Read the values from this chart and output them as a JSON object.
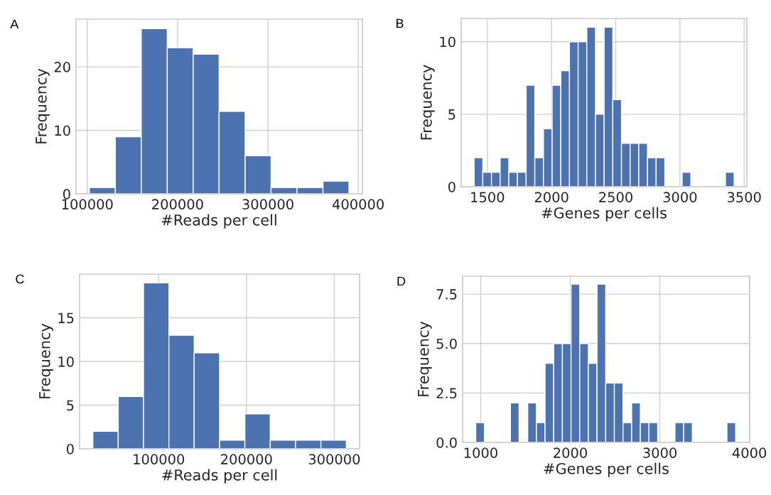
{
  "chart_data": [
    {
      "type": "histogram",
      "title": "A",
      "xlabel": "#Reads per cell",
      "ylabel": "Frequency",
      "color": "#4c72b0",
      "grid": true,
      "bins": [
        102400,
        131100,
        159800,
        188600,
        217300,
        246000,
        274800,
        303500,
        332200,
        361000,
        389700
      ],
      "values": [
        1,
        9,
        26,
        23,
        22,
        13,
        6,
        1,
        1,
        2
      ],
      "xlim": [
        87600,
        404600
      ],
      "xticks": [
        100000,
        200000,
        300000,
        400000
      ],
      "ylim": [
        0,
        27.5
      ],
      "yticks": [
        0,
        10,
        20
      ]
    },
    {
      "type": "histogram",
      "title": "B",
      "xlabel": "#Genes per cells",
      "ylabel": "Frequency",
      "color": "#4c72b0",
      "grid": true,
      "bins": [
        1397,
        1464.5,
        1532,
        1599.5,
        1667,
        1734.5,
        1802,
        1869.5,
        1937,
        2004.5,
        2072,
        2139.5,
        2207,
        2274.5,
        2342,
        2409.5,
        2477,
        2544.5,
        2612,
        2679.5,
        2747,
        2814.5,
        2882,
        2949.5,
        3017,
        3084.5,
        3152,
        3219.5,
        3287,
        3354.5,
        3422
      ],
      "values": [
        2,
        1,
        1,
        2,
        1,
        1,
        7,
        2,
        4,
        7,
        8,
        10,
        10,
        11,
        5,
        11,
        6,
        3,
        3,
        3,
        2,
        2,
        0,
        0,
        1,
        0,
        0,
        0,
        0,
        1
      ],
      "xlim": [
        1296,
        3521
      ],
      "xticks": [
        1500,
        2000,
        2500,
        3000,
        3500
      ],
      "ylim": [
        0,
        11.6
      ],
      "yticks": [
        0,
        5,
        10
      ]
    },
    {
      "type": "histogram",
      "title": "C",
      "xlabel": "#Reads per cell",
      "ylabel": "Frequency",
      "color": "#4c72b0",
      "grid": true,
      "bins": [
        25100,
        54000,
        82800,
        111700,
        140500,
        169400,
        198200,
        227100,
        255900,
        284800,
        313700
      ],
      "values": [
        2,
        6,
        19,
        13,
        11,
        1,
        4,
        1,
        1,
        1
      ],
      "xlim": [
        10000,
        328800
      ],
      "xticks": [
        100000,
        200000,
        300000
      ],
      "ylim": [
        0,
        20
      ],
      "yticks": [
        0,
        5,
        10,
        15
      ]
    },
    {
      "type": "histogram",
      "title": "D",
      "xlabel": "#Genes per cells",
      "ylabel": "Frequency",
      "color": "#4c72b0",
      "grid": true,
      "bins": [
        945,
        1041.7,
        1138.4,
        1235.1,
        1331.8,
        1428.5,
        1525.2,
        1621.9,
        1718.6,
        1815.3,
        1912,
        2008.7,
        2105.4,
        2202.1,
        2298.8,
        2395.5,
        2492.2,
        2588.9,
        2685.6,
        2782.3,
        2879,
        2975.7,
        3072.4,
        3169.1,
        3265.8,
        3362.5,
        3459.2,
        3555.9,
        3652.6,
        3749.3,
        3846
      ],
      "values": [
        1,
        0,
        0,
        0,
        2,
        0,
        2,
        1,
        4,
        5,
        5,
        8,
        5,
        4,
        8,
        3,
        3,
        1,
        2,
        1,
        1,
        0,
        0,
        1,
        1,
        0,
        0,
        0,
        0,
        1
      ],
      "xlim": [
        798,
        4003
      ],
      "xticks": [
        1000,
        2000,
        3000,
        4000
      ],
      "ylim": [
        0,
        8.4
      ],
      "yticks": [
        {
          "value": 0,
          "label": "0.0"
        },
        {
          "value": 2.5,
          "label": "2.5"
        },
        {
          "value": 5,
          "label": "5.0"
        },
        {
          "value": 7.5,
          "label": "7.5"
        }
      ]
    }
  ]
}
